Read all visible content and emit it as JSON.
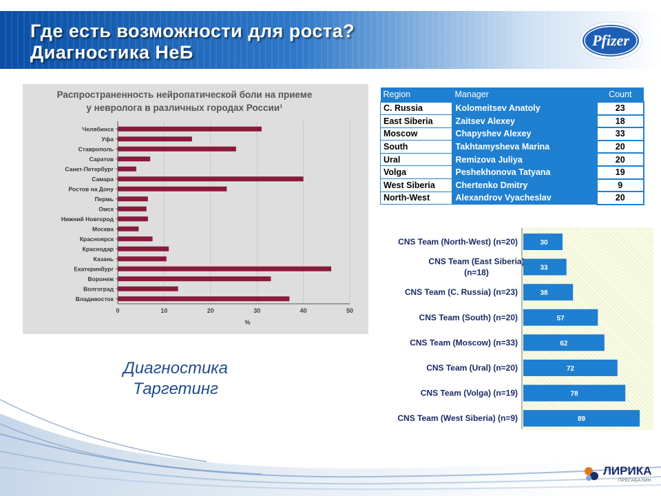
{
  "header": {
    "title_line1": "Где есть возможности для роста?",
    "title_line2": "Диагностика НеБ",
    "logo_text": "Pfizer"
  },
  "caption": {
    "line1": "Диагностика",
    "line2": "Таргетинг"
  },
  "table": {
    "headers": [
      "Region",
      "Manager",
      "Count"
    ],
    "rows": [
      {
        "region": "C. Russia",
        "manager": "Kolomeitsev Anatoly",
        "count": "23"
      },
      {
        "region": "East Siberia",
        "manager": "Zaitsev Alexey",
        "count": "18"
      },
      {
        "region": "Moscow",
        "manager": "Chapyshev Alexey",
        "count": "33"
      },
      {
        "region": "South",
        "manager": "Takhtamysheva Marina",
        "count": "20"
      },
      {
        "region": "Ural",
        "manager": "Remizova Juliya",
        "count": "20"
      },
      {
        "region": "Volga",
        "manager": "Peshekhonova Tatyana",
        "count": "19"
      },
      {
        "region": "West Siberia",
        "manager": "Chertenko Dmitry",
        "count": "9"
      },
      {
        "region": "North-West",
        "manager": "Alexandrov Vyacheslav",
        "count": "20"
      }
    ]
  },
  "footer": {
    "logo_text": "ЛИРИКА",
    "logo_sub": "ПРЕГАБАЛИН"
  },
  "chart_data": [
    {
      "type": "bar",
      "orientation": "horizontal",
      "title": "Распространенность нейропатической боли на приеме у невролога в различных городах России¹",
      "title_line1": "Распространенность нейропатической боли на приеме",
      "title_line2": "у невролога в различных городах России¹",
      "xlabel": "%",
      "xlim": [
        0,
        50
      ],
      "xticks": [
        "0",
        "10",
        "20",
        "30",
        "40",
        "50"
      ],
      "bar_color": "#8a1a3a",
      "categories": [
        "Челябинск",
        "Уфа",
        "Ставрополь",
        "Саратов",
        "Санкт-Петербург",
        "Самара",
        "Ростов на Дону",
        "Пермь",
        "Омск",
        "Нижний Новгород",
        "Москва",
        "Красноярск",
        "Краснодар",
        "Казань",
        "Екатеринбург",
        "Воронеж",
        "Волгоград",
        "Владивосток"
      ],
      "values": [
        31,
        16,
        25.5,
        7,
        4,
        40,
        23.5,
        6.5,
        6.2,
        6.5,
        4.5,
        7.5,
        11,
        10.5,
        46,
        33,
        13,
        37
      ]
    },
    {
      "type": "bar",
      "orientation": "horizontal",
      "bar_color": "#1f7fd0",
      "categories": [
        "CNS Team (North-West) (n=20)",
        "CNS Team (East Siberia) (n=18)",
        "CNS Team (C. Russia) (n=23)",
        "CNS Team (South) (n=20)",
        "CNS Team (Moscow) (n=33)",
        "CNS Team (Ural) (n=20)",
        "CNS Team (Volga) (n=19)",
        "CNS Team (West Siberia) (n=9)"
      ],
      "category_lines": [
        [
          "CNS Team (North-West) (n=20)"
        ],
        [
          "CNS Team (East Siberia)",
          "(n=18)"
        ],
        [
          "CNS Team (C. Russia) (n=23)"
        ],
        [
          "CNS Team (South) (n=20)"
        ],
        [
          "CNS Team (Moscow) (n=33)"
        ],
        [
          "CNS Team (Ural) (n=20)"
        ],
        [
          "CNS Team (Volga) (n=19)"
        ],
        [
          "CNS Team (West Siberia) (n=9)"
        ]
      ],
      "values": [
        30,
        33,
        38,
        57,
        62,
        72,
        78,
        89
      ],
      "data_labels": [
        "30",
        "33",
        "38",
        "57",
        "62",
        "72",
        "78",
        "89"
      ]
    }
  ]
}
